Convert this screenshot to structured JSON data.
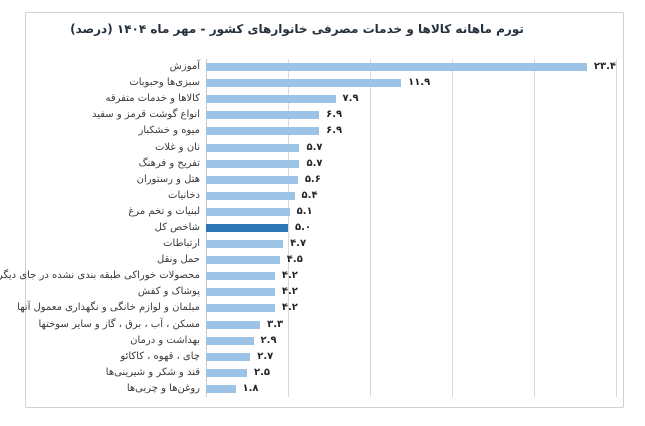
{
  "chart_data": {
    "type": "bar",
    "orientation": "horizontal",
    "title": "تورم ماهانه کالاها و خدمات مصرفی خانوارهای کشور - مهر ماه ۱۴۰۴ (درصد)",
    "categories": [
      "آموزش",
      "سبزی‌ها وحبوبات",
      "کالاها و خدمات متفرقه",
      "انواع گوشت قرمز و سفید",
      "میوه و خشکبار",
      "نان و غلات",
      "تفریح و فرهنگ",
      "هتل و رستوران",
      "دخانیات",
      "لبنیات و تخم مرغ",
      "شاخص کل",
      "ارتباطات",
      "حمل ونقل",
      "محصولات خوراکی طبقه بندی نشده در جای دیگر",
      "پوشاک و کفش",
      "مبلمان و لوازم خانگی و نگهداری معمول آنها",
      "مسکن ، آب ، برق ، گاز و سایر سوختها",
      "بهداشت و درمان",
      "چای ، قهوه ، کاکائو",
      "قند و شکر و شیرینی‌ها",
      "روغن‌ها و چربی‌ها"
    ],
    "values": [
      23.4,
      11.9,
      7.9,
      6.9,
      6.9,
      5.7,
      5.7,
      5.6,
      5.4,
      5.1,
      5.0,
      4.7,
      4.5,
      4.2,
      4.2,
      4.2,
      3.3,
      2.9,
      2.7,
      2.5,
      1.8
    ],
    "value_labels": [
      "۲۳.۴",
      "۱۱.۹",
      "۷.۹",
      "۶.۹",
      "۶.۹",
      "۵.۷",
      "۵.۷",
      "۵.۶",
      "۵.۴",
      "۵.۱",
      "۵.۰",
      "۴.۷",
      "۴.۵",
      "۴.۲",
      "۴.۲",
      "۴.۲",
      "۳.۳",
      "۲.۹",
      "۲.۷",
      "۲.۵",
      "۱.۸"
    ],
    "highlight_category": "شاخص کل",
    "highlight_index": 10,
    "xlabel": "",
    "ylabel": "",
    "xlim": [
      0,
      25
    ],
    "gridline_step": 5,
    "grid": "vertical",
    "legend": "none",
    "tick_labels_visible": false
  },
  "colors": {
    "bar": "#9DC3E6",
    "highlight": "#2E75B6",
    "gridline": "#D9D9D9",
    "axis_line": "#C6C6C6",
    "frame_border": "#D2D2D2",
    "title": "#26313E",
    "label": "#3B3B3B",
    "value": "#262626",
    "background": "#FFFFFF"
  }
}
